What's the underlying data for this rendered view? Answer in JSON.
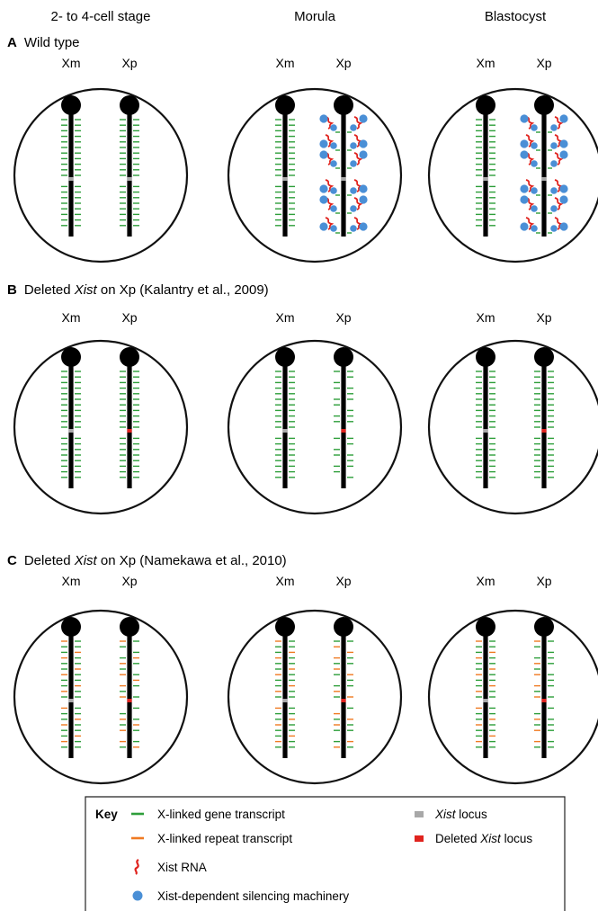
{
  "stages": [
    "2- to 4-cell stage",
    "Morula",
    "Blastocyst"
  ],
  "panels": [
    {
      "letter": "A",
      "pre": "Wild type",
      "italic": "",
      "post": ""
    },
    {
      "letter": "B",
      "pre": "Deleted ",
      "italic": "Xist",
      "post": " on Xp (Kalantry et al., 2009)"
    },
    {
      "letter": "C",
      "pre": "Deleted ",
      "italic": "Xist",
      "post": " on Xp (Namekawa et al., 2010)"
    }
  ],
  "chromosome_labels": {
    "maternal": "Xm",
    "paternal": "Xp"
  },
  "key": {
    "title": "Key",
    "gene": "X-linked gene transcript",
    "repeat": "X-linked repeat transcript",
    "xist_rna": "Xist RNA",
    "silencing": "Xist-dependent silencing machinery",
    "xist_locus_italic": "Xist",
    "xist_locus_post": " locus",
    "deleted_pre": "Deleted ",
    "deleted_italic": "Xist",
    "deleted_post": " locus"
  },
  "colors": {
    "gene_transcript": "#2e9e3a",
    "repeat_transcript": "#f07a22",
    "xist_rna": "#e0231e",
    "silencing_machinery": "#4a8fd6",
    "xist_locus": "#a8a8a8",
    "deleted_xist_locus": "#e0231e",
    "chromosome": "#000000"
  },
  "cells": [
    {
      "panel": "A",
      "stage": "2- to 4-cell stage",
      "xm": "active",
      "xp": "active"
    },
    {
      "panel": "A",
      "stage": "Morula",
      "xm": "active",
      "xp": "silenced-by-xist"
    },
    {
      "panel": "A",
      "stage": "Blastocyst",
      "xm": "active",
      "xp": "silenced-by-xist"
    },
    {
      "panel": "B",
      "stage": "2- to 4-cell stage",
      "xm": "active",
      "xp": "active-deleted-xist"
    },
    {
      "panel": "B",
      "stage": "Morula",
      "xm": "active",
      "xp": "active-deleted-xist"
    },
    {
      "panel": "B",
      "stage": "Blastocyst",
      "xm": "active",
      "xp": "active-deleted-xist"
    },
    {
      "panel": "C",
      "stage": "2- to 4-cell stage",
      "xm": "gene+repeat",
      "xp": "partial-deleted-xist"
    },
    {
      "panel": "C",
      "stage": "Morula",
      "xm": "gene+repeat",
      "xp": "partial-deleted-xist"
    },
    {
      "panel": "C",
      "stage": "Blastocyst",
      "xm": "gene+repeat",
      "xp": "partial-deleted-xist"
    }
  ]
}
